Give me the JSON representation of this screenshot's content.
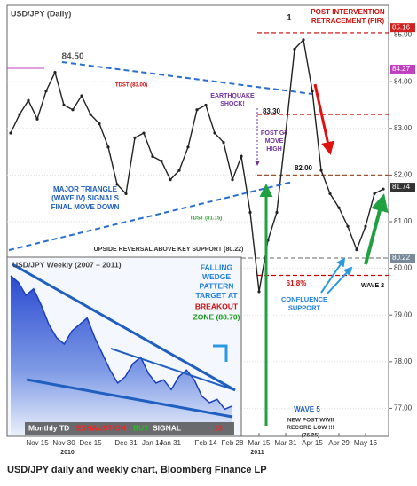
{
  "chart_data": [
    {
      "type": "line",
      "title": "USD/JPY (Daily)",
      "color": "#222222",
      "categories": [
        null,
        null,
        null,
        "Nov 15",
        null,
        null,
        "Nov 30",
        null,
        null,
        "Dec 15",
        null,
        null,
        null,
        "Dec 31",
        null,
        null,
        "Jan 14",
        null,
        "Jan 31",
        null,
        null,
        null,
        "Feb 14",
        null,
        null,
        "Feb 28",
        null,
        null,
        "Mar 15",
        null,
        null,
        "Mar 31",
        null,
        null,
        "Apr 15",
        null,
        null,
        "Apr 29",
        null,
        null,
        "May 16",
        null,
        null
      ],
      "values": [
        82.9,
        83.3,
        83.6,
        83.2,
        83.8,
        84.2,
        83.5,
        83.4,
        83.7,
        83.3,
        83.1,
        82.6,
        81.8,
        81.6,
        82.8,
        82.9,
        82.4,
        82.3,
        81.9,
        82.1,
        82.6,
        83.4,
        83.5,
        82.9,
        82.7,
        81.9,
        82.4,
        81.2,
        79.5,
        80.6,
        81.2,
        82.9,
        84.7,
        84.9,
        83.8,
        82.1,
        81.6,
        81.3,
        80.9,
        80.4,
        80.9,
        81.6,
        81.7
      ],
      "ylim": [
        76.4,
        85.6
      ],
      "yticks": [
        {
          "value": 77,
          "label": "77.00"
        },
        {
          "value": 78,
          "label": "78.00"
        },
        {
          "value": 79,
          "label": "79.00"
        },
        {
          "value": 80,
          "label": "80.00"
        },
        {
          "value": 81,
          "label": "81.00"
        },
        {
          "value": 82,
          "label": "82.00"
        },
        {
          "value": 83,
          "label": "83.00"
        },
        {
          "value": 84,
          "label": "84.00"
        },
        {
          "value": 85,
          "label": "85.00"
        }
      ],
      "grid": true,
      "levels": [
        {
          "value": 85.05,
          "color": "#cc0000"
        },
        {
          "value": 83.3,
          "color": "#cc0000"
        },
        {
          "value": 82.0,
          "color": "#a0522d"
        },
        {
          "value": 80.22,
          "color": "#888888"
        },
        {
          "value": 79.85,
          "color": "#cc0000"
        }
      ],
      "price_tags": [
        {
          "value": 85.16,
          "label": "85.16",
          "color": "#d02020"
        },
        {
          "value": 84.27,
          "label": "84.27",
          "color": "#c040c0"
        },
        {
          "value": 81.74,
          "label": "81.74",
          "color": "#333333"
        },
        {
          "value": 80.22,
          "label": "80.22",
          "color": "#7a8a9a"
        }
      ],
      "annotations": [
        {
          "lines": [
            "USD/JPY (Daily)"
          ],
          "color": "#444444"
        },
        {
          "lines": [
            "84.50"
          ],
          "color": "#555555"
        },
        {
          "lines": [
            "POST INTERVENTION",
            "RETRACEMENT (PIR)"
          ],
          "color": "#d01010"
        },
        {
          "lines": [
            "1"
          ],
          "color": "#111111"
        },
        {
          "lines": [
            "TDST (83.00)"
          ],
          "color": "#d01010"
        },
        {
          "lines": [
            "EARTHQUAKE",
            "SHOCK!"
          ],
          "color": "#7030a0"
        },
        {
          "lines": [
            "83.30"
          ],
          "color": "#111111"
        },
        {
          "lines": [
            "POST G7",
            "MOVE",
            "HIGH"
          ],
          "color": "#7030a0"
        },
        {
          "lines": [
            "82.00"
          ],
          "color": "#111111"
        },
        {
          "lines": [
            "MAJOR TRIANGLE",
            "(WAVE IV) SIGNALS",
            "FINAL MOVE DOWN"
          ],
          "color": "#1f5fbf"
        },
        {
          "lines": [
            "TDST (81.15)"
          ],
          "color": "#2a9a2a"
        },
        {
          "lines": [
            "UPSIDE REVERSAL ABOVE  KEY SUPPORT (80.22)"
          ],
          "color": "#333333"
        },
        {
          "lines": [
            "FALLING",
            "WEDGE",
            "PATTERN",
            "TARGET AT"
          ],
          "color": "#1f7fdf"
        },
        {
          "lines": [
            "BREAKOUT"
          ],
          "color": "#d01010"
        },
        {
          "lines": [
            "ZONE (88.70)"
          ],
          "color": "#1a9a1a"
        },
        {
          "lines": [
            "61.8%"
          ],
          "color": "#d01010"
        },
        {
          "lines": [
            "CONFLUENCE",
            "SUPPORT"
          ],
          "color": "#1f7fdf"
        },
        {
          "lines": [
            "WAVE 2"
          ],
          "color": "#111111"
        },
        {
          "lines": [
            "WAVE 5"
          ],
          "color": "#1f5fbf"
        },
        {
          "lines": [
            "NEW POST WWII",
            "RECORD LOW !!!",
            "(76.25)"
          ],
          "color": "#333333"
        },
        {
          "lines": [
            "2010"
          ],
          "color": "#333333"
        },
        {
          "lines": [
            "2011"
          ],
          "color": "#333333"
        }
      ]
    },
    {
      "type": "area",
      "title": "USD/JPY Weekly (2007 – 2011)",
      "color": "#1a3fc0",
      "values": [
        123,
        121,
        117,
        119,
        114,
        108,
        104,
        102,
        106,
        108,
        110,
        104,
        99,
        94,
        90,
        92,
        96,
        98,
        93,
        90,
        91,
        88,
        92,
        94,
        91,
        86,
        84,
        85,
        82,
        83
      ],
      "ylim": [
        78,
        126
      ],
      "annotations": [
        {
          "lines": [
            "Monthly TD"
          ],
          "color": "#ffffff"
        },
        {
          "lines": [
            "EXHAUSTION"
          ],
          "color": "#ff2020"
        },
        {
          "lines": [
            "BUY"
          ],
          "color": "#20c020"
        },
        {
          "lines": [
            "SIGNAL"
          ],
          "color": "#ffffff"
        },
        {
          "lines": [
            "13"
          ],
          "color": "#ff2020"
        }
      ]
    }
  ],
  "caption": "USD/JPY daily and weekly chart, Bloomberg Finance LP"
}
